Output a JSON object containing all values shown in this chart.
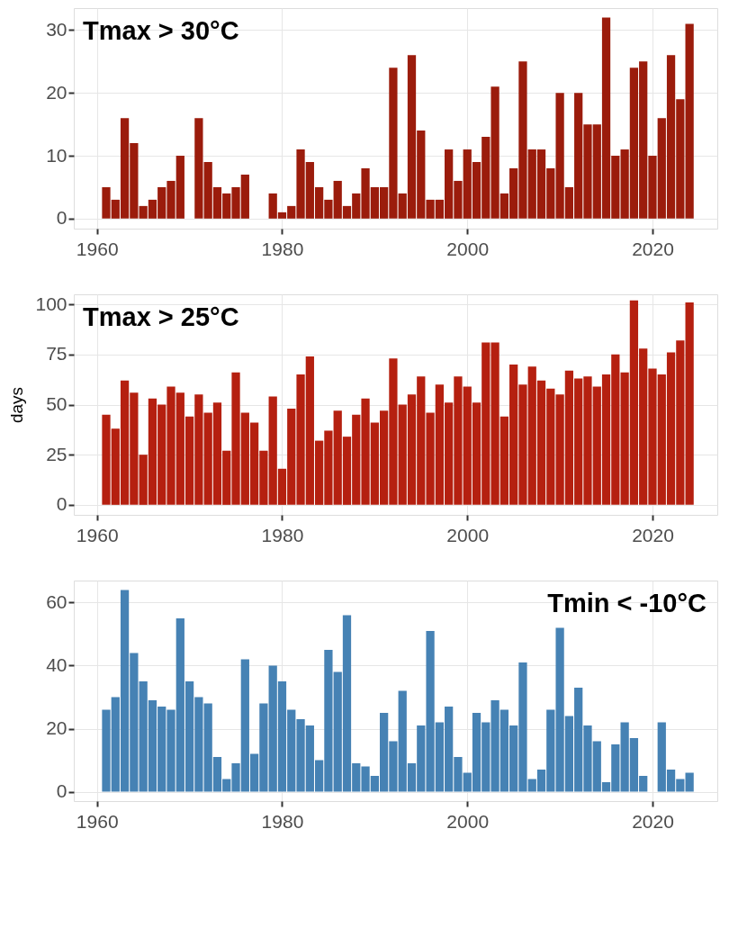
{
  "chart_data": [
    {
      "type": "bar",
      "title": "Tmax > 30°C",
      "x": [
        1961,
        1962,
        1963,
        1964,
        1965,
        1966,
        1967,
        1968,
        1969,
        1970,
        1971,
        1972,
        1973,
        1974,
        1975,
        1976,
        1977,
        1978,
        1979,
        1980,
        1981,
        1982,
        1983,
        1984,
        1985,
        1986,
        1987,
        1988,
        1989,
        1990,
        1991,
        1992,
        1993,
        1994,
        1995,
        1996,
        1997,
        1998,
        1999,
        2000,
        2001,
        2002,
        2003,
        2004,
        2005,
        2006,
        2007,
        2008,
        2009,
        2010,
        2011,
        2012,
        2013,
        2014,
        2015,
        2016,
        2017,
        2018,
        2019,
        2020,
        2021,
        2022,
        2023,
        2024
      ],
      "series": [
        {
          "color": "#9b1c0c",
          "values": [
            5,
            3,
            16,
            12,
            2,
            3,
            5,
            6,
            10,
            0,
            16,
            9,
            5,
            4,
            5,
            7,
            0,
            0,
            4,
            1,
            2,
            11,
            9,
            5,
            3,
            6,
            2,
            4,
            8,
            5,
            5,
            24,
            4,
            26,
            14,
            3,
            3,
            11,
            6,
            11,
            9,
            13,
            21,
            4,
            8,
            25,
            11,
            11,
            8,
            20,
            5,
            20,
            15,
            15,
            32,
            10,
            11,
            24,
            25,
            10,
            16,
            26,
            19,
            31
          ]
        }
      ],
      "xlim": [
        1957.5,
        2027
      ],
      "xticks": [
        1960,
        1980,
        2000,
        2020
      ],
      "ylim": [
        -1.6,
        33.5
      ],
      "yticks": [
        0,
        10,
        20,
        30
      ],
      "grid": true
    },
    {
      "type": "bar",
      "title": "Tmax > 25°C",
      "ylabel": "days",
      "x": [
        1961,
        1962,
        1963,
        1964,
        1965,
        1966,
        1967,
        1968,
        1969,
        1970,
        1971,
        1972,
        1973,
        1974,
        1975,
        1976,
        1977,
        1978,
        1979,
        1980,
        1981,
        1982,
        1983,
        1984,
        1985,
        1986,
        1987,
        1988,
        1989,
        1990,
        1991,
        1992,
        1993,
        1994,
        1995,
        1996,
        1997,
        1998,
        1999,
        2000,
        2001,
        2002,
        2003,
        2004,
        2005,
        2006,
        2007,
        2008,
        2009,
        2010,
        2011,
        2012,
        2013,
        2014,
        2015,
        2016,
        2017,
        2018,
        2019,
        2020,
        2021,
        2022,
        2023,
        2024
      ],
      "series": [
        {
          "color": "#b52010",
          "values": [
            45,
            38,
            62,
            56,
            25,
            53,
            50,
            59,
            56,
            44,
            55,
            46,
            51,
            27,
            66,
            46,
            41,
            27,
            54,
            18,
            48,
            65,
            74,
            32,
            37,
            47,
            34,
            45,
            53,
            41,
            47,
            73,
            50,
            55,
            64,
            46,
            60,
            51,
            64,
            59,
            51,
            81,
            81,
            44,
            70,
            60,
            69,
            62,
            58,
            55,
            67,
            63,
            64,
            59,
            65,
            75,
            66,
            102,
            78,
            68,
            65,
            76,
            82,
            101
          ]
        }
      ],
      "xlim": [
        1957.5,
        2027
      ],
      "xticks": [
        1960,
        1980,
        2000,
        2020
      ],
      "ylim": [
        -5,
        105
      ],
      "yticks": [
        0,
        25,
        50,
        75,
        100
      ],
      "grid": true
    },
    {
      "type": "bar",
      "title": "Tmin < -10°C",
      "x": [
        1961,
        1962,
        1963,
        1964,
        1965,
        1966,
        1967,
        1968,
        1969,
        1970,
        1971,
        1972,
        1973,
        1974,
        1975,
        1976,
        1977,
        1978,
        1979,
        1980,
        1981,
        1982,
        1983,
        1984,
        1985,
        1986,
        1987,
        1988,
        1989,
        1990,
        1991,
        1992,
        1993,
        1994,
        1995,
        1996,
        1997,
        1998,
        1999,
        2000,
        2001,
        2002,
        2003,
        2004,
        2005,
        2006,
        2007,
        2008,
        2009,
        2010,
        2011,
        2012,
        2013,
        2014,
        2015,
        2016,
        2017,
        2018,
        2019,
        2020,
        2021,
        2022,
        2023,
        2024
      ],
      "series": [
        {
          "color": "#4682b4",
          "values": [
            26,
            30,
            64,
            44,
            35,
            29,
            27,
            26,
            55,
            35,
            30,
            28,
            11,
            4,
            9,
            42,
            12,
            28,
            40,
            35,
            26,
            23,
            21,
            10,
            45,
            38,
            56,
            9,
            8,
            5,
            25,
            16,
            32,
            9,
            21,
            51,
            22,
            27,
            11,
            6,
            25,
            22,
            29,
            26,
            21,
            41,
            4,
            7,
            26,
            52,
            24,
            33,
            21,
            16,
            3,
            15,
            22,
            17,
            5,
            0,
            22,
            7,
            4,
            6
          ]
        }
      ],
      "xlim": [
        1957.5,
        2027
      ],
      "xticks": [
        1960,
        1980,
        2000,
        2020
      ],
      "ylim": [
        -3,
        67
      ],
      "yticks": [
        0,
        20,
        40,
        60
      ],
      "grid": true
    }
  ]
}
